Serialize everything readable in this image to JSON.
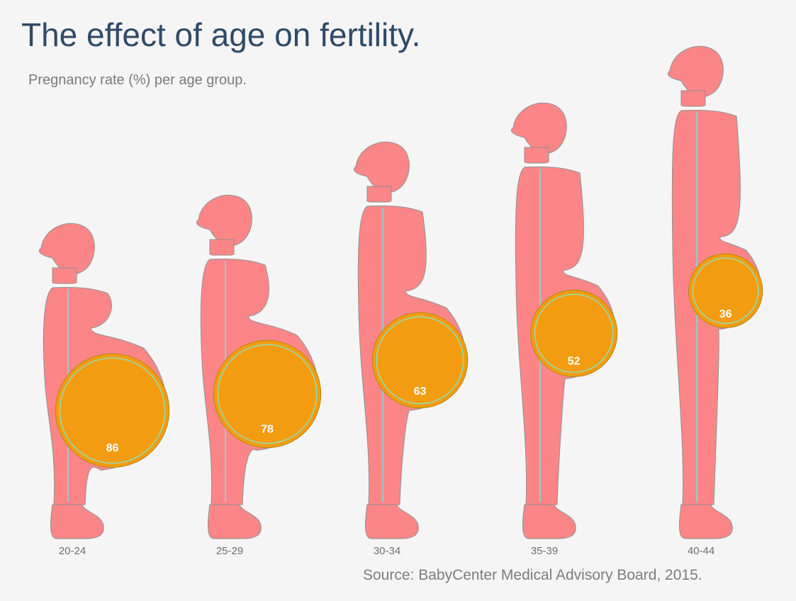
{
  "title": "The effect of age on fertility.",
  "subtitle": "Pregnancy rate (%) per age group.",
  "source": "Source: BabyCenter Medical Advisory Board, 2015.",
  "colors": {
    "background": "#f5f5f6",
    "figure": "#fc8687",
    "figure_outline": "#8f8f8f",
    "belly": "#f39c12",
    "belly_ring": "#8fe0b0",
    "spine": "#9fc7c7",
    "title": "#2f4a66"
  },
  "chart_data": {
    "type": "bar",
    "categories": [
      "20-24",
      "25-29",
      "30-34",
      "35-39",
      "40-44"
    ],
    "values": [
      86,
      78,
      63,
      52,
      36
    ],
    "unit": "%"
  }
}
